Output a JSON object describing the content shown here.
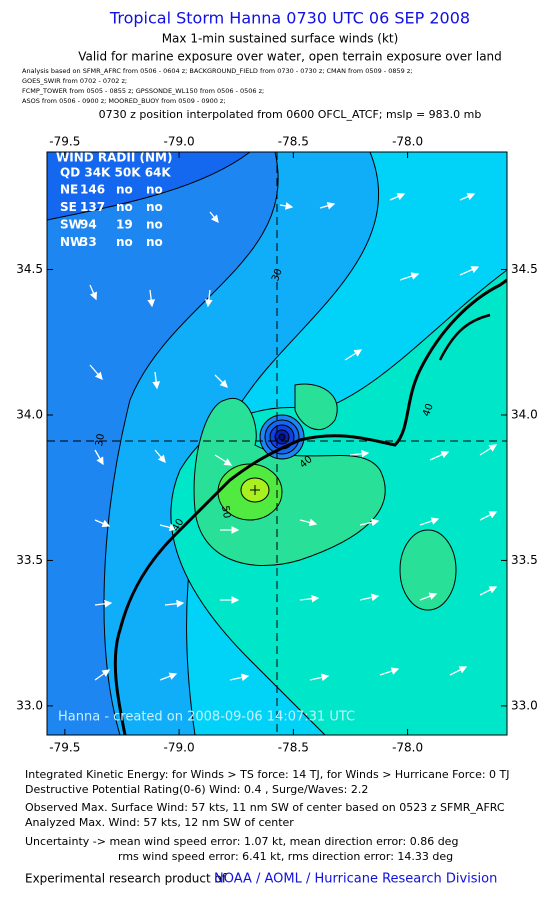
{
  "title": "Tropical Storm Hanna 0730 UTC 06 SEP 2008",
  "subtitle": "Max 1-min sustained surface winds (kt)",
  "validity": "Valid for marine exposure over water, open terrain exposure over land",
  "sources": [
    "Analysis based on  SFMR_AFRC from 0506 - 0604 z;  BACKGROUND_FIELD from 0730 - 0730 z;  CMAN from 0509 - 0859 z;",
    "GOES_SWIR from 0702 - 0702 z;",
    "FCMP_TOWER from 0505 - 0855 z;  GPSSONDE_WL150 from 0506 - 0506 z;",
    "ASOS from 0506 - 0900 z;  MOORED_BUOY from 0509 - 0900 z;"
  ],
  "position_note": "0730 z position interpolated from 0600 OFCL_ATCF; mslp = 983.0 mb",
  "map": {
    "xlim": [
      -79.578,
      -77.565
    ],
    "ylim": [
      32.9,
      34.904
    ],
    "xticks": [
      {
        "value": -79.5,
        "label": "-79.5"
      },
      {
        "value": -79.0,
        "label": "-79.0"
      },
      {
        "value": -78.5,
        "label": "-78.5"
      },
      {
        "value": -78.0,
        "label": "-78.0"
      }
    ],
    "yticks": [
      {
        "value": 33.0,
        "label": "33.0"
      },
      {
        "value": 33.5,
        "label": "33.5"
      },
      {
        "value": 34.0,
        "label": "34.0"
      },
      {
        "value": 34.5,
        "label": "34.5"
      }
    ],
    "wind_radii": {
      "title": "WIND RADII (NM)",
      "header": "QD 34K 50K 64K",
      "rows": [
        [
          "NE",
          "146",
          "no",
          "no"
        ],
        [
          "SE",
          "137",
          "no",
          "no"
        ],
        [
          "SW",
          "94",
          "19",
          "no"
        ],
        [
          "NW",
          "33",
          "no",
          "no"
        ]
      ]
    },
    "contour_labels": [
      "30",
      "30",
      "40",
      "50",
      "40",
      "40"
    ],
    "credit": "Hanna - created on 2008-09-06 14:07:31 UTC"
  },
  "footer": [
    "Integrated Kinetic Energy:  for Winds > TS force: 14 TJ,  for Winds > Hurricane Force: 0 TJ",
    "Destructive Potential Rating(0-6)  Wind: 0.4 , Surge/Waves: 2.2",
    "Observed Max. Surface Wind: 57 kts, 11 nm SW of center based on 0523 z SFMR_AFRC",
    "Analyzed Max. Wind: 57 kts, 12 nm SW of center",
    "Uncertainty -> mean wind speed error: 1.07 kt,   mean direction error: 0.86 deg",
    "rms wind speed error: 6.41 kt,   rms direction error: 14.33 deg"
  ],
  "product_note": "Experimental research product of",
  "product_link": "NOAA / AOML / Hurricane Research Division"
}
